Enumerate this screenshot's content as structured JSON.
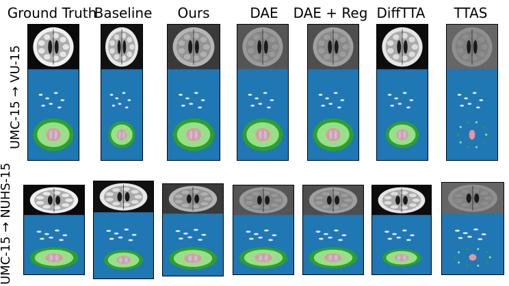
{
  "columns": [
    {
      "title": "Ground Truth",
      "brightness": "#f0f0f0",
      "background": "#0a0a0a",
      "mask": "full"
    },
    {
      "title": "Baseline",
      "brightness": "#e8e8e8",
      "background": "#111111",
      "mask": "partial"
    },
    {
      "title": "Ours",
      "brightness": "#b5b5b5",
      "background": "#3a3a3a",
      "mask": "full"
    },
    {
      "title": "DAE",
      "brightness": "#9a9a9a",
      "background": "#555555",
      "mask": "full"
    },
    {
      "title": "DAE + Reg",
      "brightness": "#a0a0a0",
      "background": "#4e4e4e",
      "mask": "full"
    },
    {
      "title": "DiffTTA",
      "brightness": "#e6e6e6",
      "background": "#0c0c0c",
      "mask": "partial"
    },
    {
      "title": "TTAS",
      "brightness": "#8f8f8f",
      "background": "#666666",
      "mask": "sparse"
    }
  ],
  "rows": [
    {
      "label": "UMC-15 → VU-15"
    },
    {
      "label": "UMC-15 → NUHS-15"
    }
  ],
  "colors": {
    "mask_background": "#1f77b4",
    "white_matter_lesion": "#dfe8ff",
    "gray_matter": "#2ca02c",
    "white_matter": "#98df8a",
    "csf": "#e7969c",
    "ventricle": "#aec7e8"
  }
}
